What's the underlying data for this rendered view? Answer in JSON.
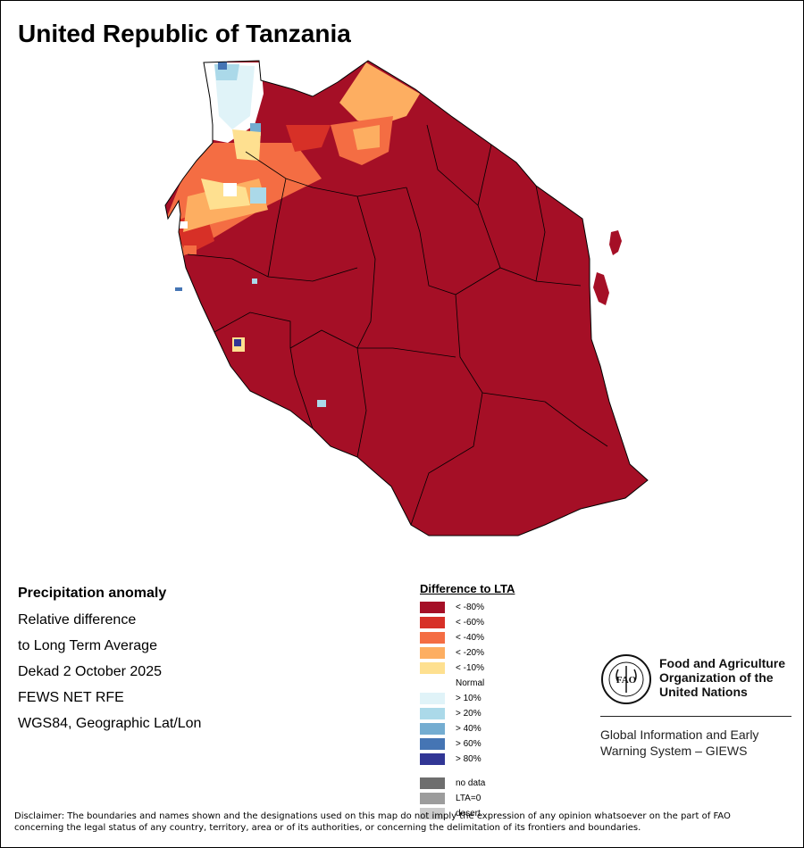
{
  "title": "United Republic of Tanzania",
  "info": {
    "heading": "Precipitation anomaly",
    "lines": [
      "Relative difference",
      "to Long Term Average",
      "Dekad 2 October 2025",
      "FEWS NET RFE",
      "WGS84, Geographic Lat/Lon"
    ]
  },
  "legend": {
    "title": "Difference to LTA",
    "items": [
      {
        "label": "< -80%",
        "color": "#a50f26"
      },
      {
        "label": "< -60%",
        "color": "#d73027"
      },
      {
        "label": "< -40%",
        "color": "#f46d43"
      },
      {
        "label": "< -20%",
        "color": "#fdae61"
      },
      {
        "label": "< -10%",
        "color": "#fee090"
      },
      {
        "label": "Normal",
        "color": "#ffffff"
      },
      {
        "label": "> 10%",
        "color": "#e0f3f8"
      },
      {
        "label": "> 20%",
        "color": "#abd9e9"
      },
      {
        "label": "> 40%",
        "color": "#74add1"
      },
      {
        "label": "> 60%",
        "color": "#4575b4"
      },
      {
        "label": "> 80%",
        "color": "#313695"
      }
    ],
    "extra": [
      {
        "label": "no data",
        "color": "#6e6e6e"
      },
      {
        "label": "LTA=0",
        "color": "#9c9c9c"
      },
      {
        "label": "desert",
        "color": "#cccccc"
      }
    ]
  },
  "fao": {
    "logo_letters": "FAO",
    "org_lines": [
      "Food and Agriculture",
      "Organization of the",
      "United Nations"
    ],
    "system_lines": [
      "Global Information and Early",
      "Warning System – GIEWS"
    ]
  },
  "disclaimer": {
    "line1": "Disclaimer: The boundaries and names shown and the designations used on this map do not imply the expression of any opinion whatsoever on the part of FAO",
    "line2": "concerning the legal status of any country, territory, area or of its authorities, or concerning the delimitation of its frontiers and boundaries."
  }
}
